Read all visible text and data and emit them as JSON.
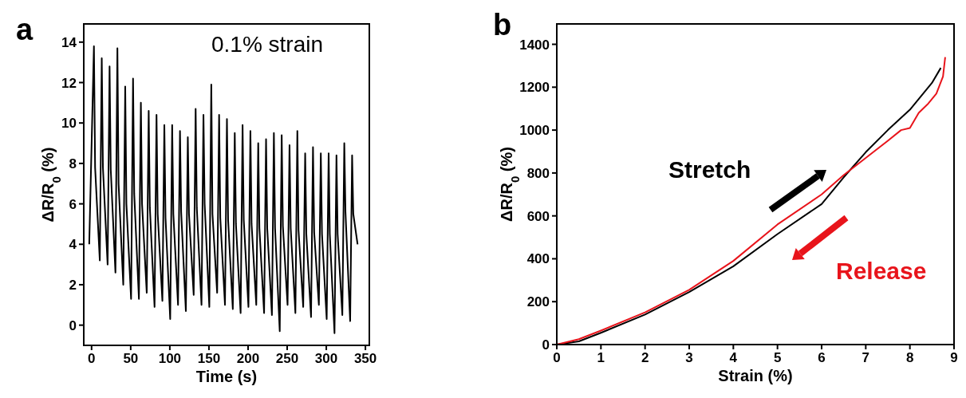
{
  "chart_data": [
    {
      "type": "line",
      "title": "a",
      "xlabel": "Time (s)",
      "ylabel": "ΔR/R$_{0}$ (%)",
      "annotations": [
        "0.1% strain"
      ],
      "xlim": [
        -10,
        355
      ],
      "xticks": [
        0,
        50,
        100,
        150,
        200,
        250,
        300,
        350
      ],
      "ylim": [
        -1,
        14.9
      ],
      "yticks": [
        0,
        2,
        4,
        6,
        8,
        10,
        12,
        14
      ],
      "grid": false,
      "series": [
        {
          "color": "#000000",
          "x": [
            -3,
            3,
            4.5,
            10.5,
            13,
            14.5,
            20.5,
            23,
            24.5,
            30.5,
            33,
            34.5,
            40.5,
            43,
            44.5,
            50.5,
            53,
            54.5,
            60.5,
            63,
            64.5,
            70.5,
            73,
            74.5,
            80.5,
            83,
            84.5,
            90.5,
            93,
            94.5,
            100.5,
            103,
            104.5,
            110.5,
            113,
            114.5,
            120.5,
            123,
            124.5,
            130.5,
            133,
            134.5,
            140.5,
            143,
            144.5,
            150.5,
            153,
            154.5,
            160.5,
            163,
            164.5,
            170.5,
            173,
            174.5,
            180.5,
            183,
            184.5,
            190.5,
            193,
            194.5,
            200.5,
            203,
            204.5,
            210.5,
            213,
            214.5,
            220.5,
            223,
            224.5,
            230.5,
            233,
            234.5,
            240.5,
            243,
            244.5,
            250.5,
            253,
            254.5,
            260.5,
            263,
            264.5,
            270.5,
            273,
            274.5,
            280.5,
            283,
            284.5,
            290.5,
            293,
            294.5,
            300.5,
            303,
            304.5,
            310.5,
            313,
            314.5,
            320.5,
            323,
            324.5,
            330.5,
            333,
            334.5,
            340
          ],
          "values": [
            4.0,
            13.8,
            7.8,
            3.2,
            13.2,
            7.8,
            3.0,
            12.8,
            7.7,
            2.6,
            13.7,
            7.0,
            2.0,
            11.8,
            6.0,
            1.3,
            12.2,
            6.5,
            1.3,
            11.0,
            6.0,
            1.6,
            10.6,
            5.8,
            0.9,
            10.4,
            5.5,
            1.2,
            9.9,
            5.3,
            0.3,
            9.9,
            5.5,
            1.0,
            9.6,
            5.6,
            0.7,
            9.3,
            5.5,
            1.5,
            10.7,
            5.8,
            1.0,
            10.4,
            6.0,
            0.9,
            11.9,
            5.5,
            1.6,
            10.4,
            5.3,
            1.0,
            10.2,
            5.2,
            0.8,
            9.5,
            5.0,
            0.6,
            9.9,
            5.2,
            0.9,
            9.6,
            5.0,
            1.0,
            9.0,
            4.8,
            0.6,
            9.2,
            4.8,
            0.5,
            9.5,
            4.8,
            -0.3,
            9.4,
            4.9,
            1.0,
            8.9,
            4.8,
            0.6,
            9.6,
            4.7,
            0.9,
            8.5,
            4.5,
            0.4,
            8.8,
            4.6,
            1.0,
            8.5,
            4.5,
            0.3,
            8.5,
            4.5,
            -0.4,
            8.4,
            4.5,
            0.5,
            9.0,
            5.6,
            0.2,
            8.4,
            5.5,
            4.0
          ]
        }
      ]
    },
    {
      "type": "line",
      "title": "b",
      "xlabel": "Strain (%)",
      "ylabel": "ΔR/R$_{0}$ (%)",
      "annotations": [
        "Stretch",
        "Release"
      ],
      "xlim": [
        0,
        9
      ],
      "xticks": [
        0,
        1,
        2,
        3,
        4,
        5,
        6,
        7,
        8,
        9
      ],
      "ylim": [
        0,
        1495
      ],
      "yticks": [
        0,
        200,
        400,
        600,
        800,
        1000,
        1200,
        1400
      ],
      "grid": false,
      "series": [
        {
          "color": "#000000",
          "x": [
            0,
            0.5,
            1,
            2,
            3,
            4,
            5,
            6,
            6.5,
            7,
            7.5,
            8,
            8.5,
            8.7
          ],
          "values": [
            0,
            15,
            55,
            140,
            245,
            365,
            515,
            655,
            780,
            897,
            1000,
            1095,
            1220,
            1290
          ]
        },
        {
          "color": "#e8141b",
          "x": [
            8.8,
            8.75,
            8.6,
            8.4,
            8.2,
            8.0,
            7.8,
            7.5,
            7,
            6.5,
            6,
            5,
            4,
            3,
            2,
            1,
            0.5,
            0
          ],
          "values": [
            1340,
            1250,
            1170,
            1120,
            1080,
            1010,
            1000,
            950,
            870,
            790,
            700,
            560,
            390,
            255,
            150,
            65,
            25,
            0
          ]
        }
      ]
    }
  ]
}
